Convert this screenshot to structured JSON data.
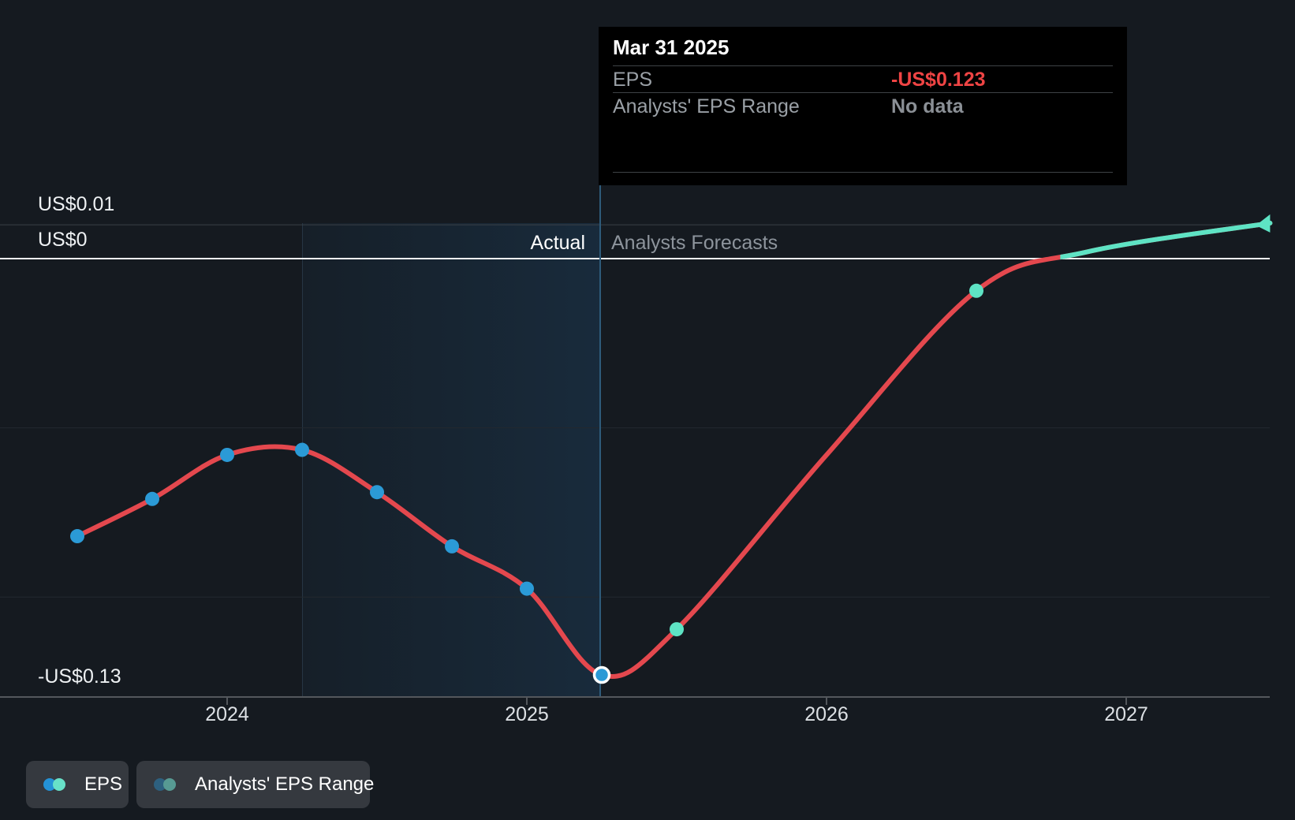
{
  "tooltip": {
    "title": "Mar 31 2025",
    "rows": [
      {
        "label": "EPS",
        "value": "-US$0.123",
        "value_color": "#ef4444"
      },
      {
        "label": "Analysts' EPS Range",
        "value": "No data",
        "value_color": "#8b9096"
      }
    ]
  },
  "axes": {
    "y_labels": [
      "US$0.01",
      "US$0",
      "-US$0.13"
    ],
    "x_labels": [
      "2024",
      "2025",
      "2026",
      "2027"
    ]
  },
  "annotations": {
    "actual": "Actual",
    "forecast": "Analysts Forecasts"
  },
  "legend": [
    {
      "label": "EPS",
      "dot_colors": [
        "#2492d6",
        "#68e1c8"
      ]
    },
    {
      "label": "Analysts' EPS Range",
      "dot_colors": [
        "#2d607f",
        "#579a93"
      ]
    }
  ],
  "chart_data": {
    "type": "line",
    "title": "EPS: past performance and analysts forecasts",
    "x": {
      "range_decimal_years": [
        2023.24,
        2027.48
      ],
      "ticks": [
        {
          "label": "2024",
          "t": 2024
        },
        {
          "label": "2025",
          "t": 2025
        },
        {
          "label": "2026",
          "t": 2026
        },
        {
          "label": "2027",
          "t": 2027
        }
      ]
    },
    "y": {
      "unit": "US$ per share",
      "range": [
        -0.1295,
        0.0105
      ],
      "gridlines": [
        0.01,
        0,
        -0.05,
        -0.1
      ],
      "labeled_gridlines": {
        "US$0.01": 0.01,
        "US$0": 0,
        "-US$0.13": -0.13
      }
    },
    "divider_decimal_year": 2025.25,
    "highlight_band_decimal_years": [
      2024.25,
      2025.25
    ],
    "zero_cross_decimal_year": 2026.78,
    "series": [
      {
        "name": "EPS",
        "points": [
          {
            "date": "Jun 30 2023",
            "t": 2023.5,
            "value": -0.082,
            "segment": "actual"
          },
          {
            "date": "Sep 30 2023",
            "t": 2023.75,
            "value": -0.071,
            "segment": "actual"
          },
          {
            "date": "Dec 31 2023",
            "t": 2024.0,
            "value": -0.058,
            "segment": "actual"
          },
          {
            "date": "Mar 31 2024",
            "t": 2024.25,
            "value": -0.0565,
            "segment": "actual"
          },
          {
            "date": "Jun 30 2024",
            "t": 2024.5,
            "value": -0.069,
            "segment": "actual"
          },
          {
            "date": "Sep 30 2024",
            "t": 2024.75,
            "value": -0.085,
            "segment": "actual"
          },
          {
            "date": "Dec 31 2024",
            "t": 2025.0,
            "value": -0.0975,
            "segment": "actual"
          },
          {
            "date": "Mar 31 2025",
            "t": 2025.25,
            "value": -0.123,
            "segment": "actual",
            "highlighted": true
          },
          {
            "date": "Jun 30 2025",
            "t": 2025.5,
            "value": -0.1095,
            "segment": "forecast"
          },
          {
            "date": "Dec 31 2025",
            "t": 2026.0,
            "value": -0.058,
            "segment": "forecast",
            "marker": false
          },
          {
            "date": "Jun 30 2026",
            "t": 2026.5,
            "value": -0.0095,
            "segment": "forecast"
          },
          {
            "date": "Nov 2026",
            "t": 2026.87,
            "value": 0.002,
            "segment": "forecast",
            "marker": false
          },
          {
            "date": "Jun 2027",
            "t": 2027.48,
            "value": 0.0105,
            "segment": "forecast",
            "marker": false,
            "end_cap": "arrow"
          }
        ]
      }
    ],
    "colors": {
      "actual_line": "#e4484e",
      "forecast_line": "#5ee3c4",
      "actual_marker": "#2b9ad6",
      "forecast_marker": "#5ee3c4",
      "highlight_marker_ring": "#ffffff",
      "zero_line": "#f2f4f5",
      "gridline_positive": "#3a4047",
      "gridline_negative": "#23282f",
      "axis_line": "#53575c",
      "divider_line": "#2e5b7a",
      "band_from": "rgba(45,155,245,0.04)",
      "band_to": "rgba(45,155,245,0.13)",
      "band_edge": "rgba(140,190,235,0.14)"
    },
    "legend_position": "bottom-left",
    "grid": true
  }
}
